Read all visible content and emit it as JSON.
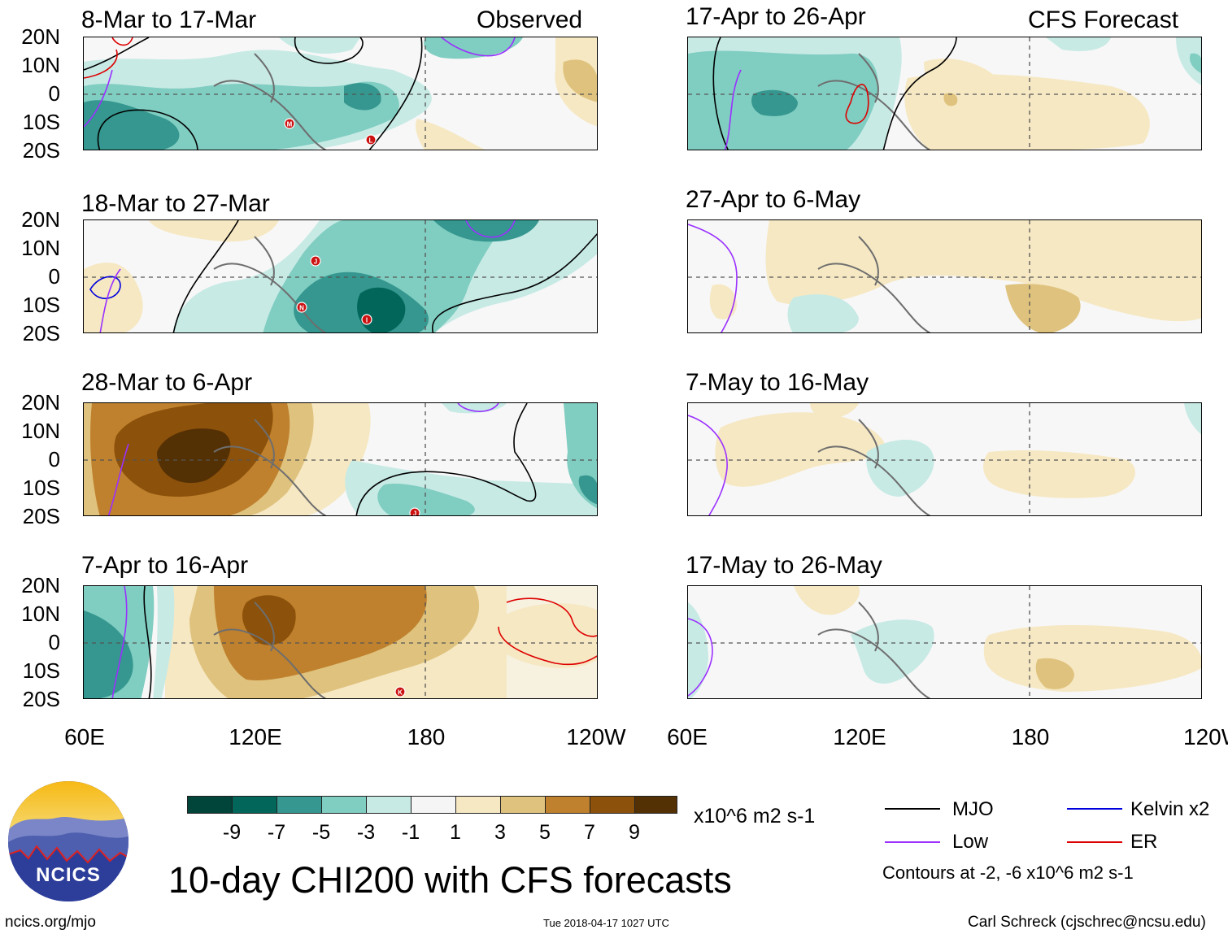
{
  "headers": {
    "observed": "Observed",
    "forecast": "CFS Forecast"
  },
  "lat_labels": [
    "20N",
    "10N",
    "0",
    "10S",
    "20S"
  ],
  "lon_labels": [
    "60E",
    "120E",
    "180",
    "120W"
  ],
  "left_panels": [
    {
      "title": "8-Mar to 17-Mar"
    },
    {
      "title": "18-Mar to 27-Mar"
    },
    {
      "title": "28-Mar to 6-Apr"
    },
    {
      "title": "7-Apr to 16-Apr"
    }
  ],
  "right_panels": [
    {
      "title": "17-Apr to 26-Apr"
    },
    {
      "title": "27-Apr to 6-May"
    },
    {
      "title": "7-May to 16-May"
    },
    {
      "title": "17-May to 26-May"
    }
  ],
  "storm_markers": [
    "M",
    "L",
    "J",
    "N",
    "I",
    "J",
    "K"
  ],
  "colorbar": {
    "labels": [
      "-9",
      "-7",
      "-5",
      "-3",
      "-1",
      "1",
      "3",
      "5",
      "7",
      "9"
    ],
    "colors": [
      "#01443a",
      "#02665a",
      "#35978f",
      "#80cdc1",
      "#c7eae5",
      "#f5f5f5",
      "#f6e8c3",
      "#dfc27d",
      "#bf812d",
      "#8c510a",
      "#543005"
    ],
    "units": "x10^6 m2 s-1"
  },
  "main_title": "10-day CHI200 with CFS forecasts",
  "logo": {
    "text": "NCICS"
  },
  "legend": {
    "mjo": "MJO",
    "low": "Low",
    "kelvin": "Kelvin x2",
    "er": "ER",
    "contours_note": "Contours at -2, -6 x10^6 m2 s-1",
    "colors": {
      "mjo": "#000000",
      "low": "#9b30ff",
      "kelvin": "#0000dd",
      "er": "#dd0000"
    }
  },
  "footer": {
    "url": "ncics.org/mjo",
    "timestamp": "Tue 2018-04-17 1027 UTC",
    "author": "Carl Schreck (cjschrec@ncsu.edu)"
  }
}
